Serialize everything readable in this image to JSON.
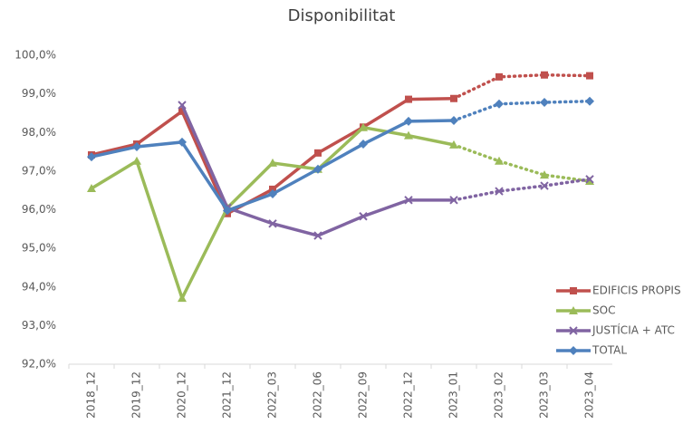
{
  "chart_data": {
    "type": "line",
    "title": "Disponibilitat",
    "categories": [
      "2018_12",
      "2019_12",
      "2020_12",
      "2021_12",
      "2022_03",
      "2022_06",
      "2022_09",
      "2022_12",
      "2023_01",
      "2023_02",
      "2023_03",
      "2023_04"
    ],
    "series": [
      {
        "name": "EDIFICIS PROPIS",
        "color": "#c0504d",
        "marker": "square",
        "values": [
          97.42,
          97.7,
          98.55,
          95.9,
          96.53,
          97.47,
          98.14,
          98.86,
          98.88,
          99.44,
          99.49,
          99.47
        ]
      },
      {
        "name": "SOC",
        "color": "#9bbb59",
        "marker": "triangle",
        "values": [
          96.55,
          97.26,
          93.71,
          96.05,
          97.21,
          97.05,
          98.13,
          97.92,
          97.68,
          97.26,
          96.9,
          96.74
        ]
      },
      {
        "name": "JUSTÍCIA + ATC",
        "color": "#8064a2",
        "marker": "x",
        "values": [
          null,
          null,
          98.71,
          96.05,
          95.64,
          95.33,
          95.83,
          96.25,
          96.25,
          96.48,
          96.62,
          96.79
        ]
      },
      {
        "name": "TOTAL",
        "color": "#4f81bd",
        "marker": "diamond",
        "values": [
          97.37,
          97.63,
          97.75,
          95.98,
          96.41,
          97.05,
          97.7,
          98.29,
          98.31,
          98.74,
          98.78,
          98.81
        ]
      }
    ],
    "dotted_from": "2023_01",
    "ylim": [
      92,
      100
    ],
    "yticks": [
      {
        "value": 92,
        "label": "92,0%"
      },
      {
        "value": 93,
        "label": "93,0%"
      },
      {
        "value": 94,
        "label": "94,0%"
      },
      {
        "value": 95,
        "label": "95,0%"
      },
      {
        "value": 96,
        "label": "96,0%"
      },
      {
        "value": 97,
        "label": "97,0%"
      },
      {
        "value": 98,
        "label": "98,0%"
      },
      {
        "value": 99,
        "label": "99,0%"
      },
      {
        "value": 100,
        "label": "100,0%"
      }
    ],
    "grid": false,
    "legend": "right"
  }
}
